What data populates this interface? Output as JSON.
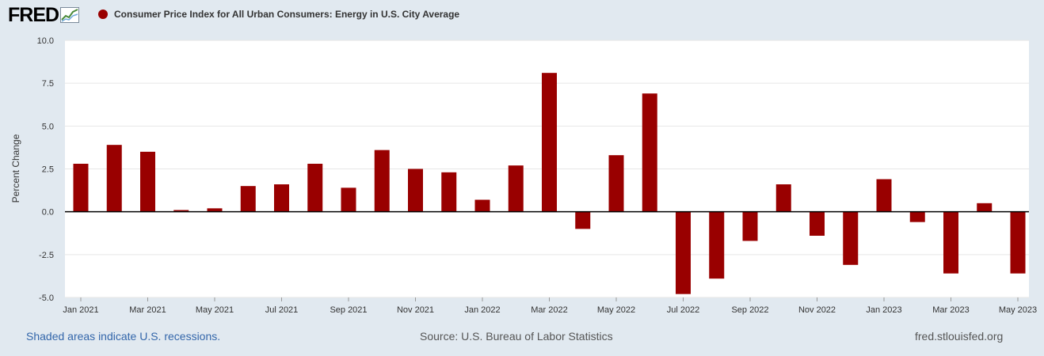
{
  "header": {
    "logo_text": "FRED",
    "series_title": "Consumer Price Index for All Urban Consumers: Energy in U.S. City Average",
    "series_color": "#990000"
  },
  "footer": {
    "recession_note": "Shaded areas indicate U.S. recessions.",
    "source": "Source: U.S. Bureau of Labor Statistics",
    "site": "fred.stlouisfed.org"
  },
  "chart_data": {
    "type": "bar",
    "title": "Consumer Price Index for All Urban Consumers: Energy in U.S. City Average",
    "xlabel": "",
    "ylabel": "Percent Change",
    "ylim": [
      -5.0,
      10.0
    ],
    "yticks": [
      "-5.0",
      "-2.5",
      "0.0",
      "2.5",
      "5.0",
      "7.5",
      "10.0"
    ],
    "xtick_labels": [
      "Jan 2021",
      "Mar 2021",
      "May 2021",
      "Jul 2021",
      "Sep 2021",
      "Nov 2021",
      "Jan 2022",
      "Mar 2022",
      "May 2022",
      "Jul 2022",
      "Sep 2022",
      "Nov 2022",
      "Jan 2023",
      "Mar 2023",
      "May 2023"
    ],
    "categories": [
      "Jan 2021",
      "Feb 2021",
      "Mar 2021",
      "Apr 2021",
      "May 2021",
      "Jun 2021",
      "Jul 2021",
      "Aug 2021",
      "Sep 2021",
      "Oct 2021",
      "Nov 2021",
      "Dec 2021",
      "Jan 2022",
      "Feb 2022",
      "Mar 2022",
      "Apr 2022",
      "May 2022",
      "Jun 2022",
      "Jul 2022",
      "Aug 2022",
      "Sep 2022",
      "Oct 2022",
      "Nov 2022",
      "Dec 2022",
      "Jan 2023",
      "Feb 2023",
      "Mar 2023",
      "Apr 2023",
      "May 2023"
    ],
    "values": [
      2.8,
      3.9,
      3.5,
      0.1,
      0.2,
      1.5,
      1.6,
      2.8,
      1.4,
      3.6,
      2.5,
      2.3,
      0.7,
      2.7,
      8.1,
      -1.0,
      3.3,
      6.9,
      -4.8,
      -3.9,
      -1.7,
      1.6,
      -1.4,
      -3.1,
      1.9,
      -0.6,
      -3.6,
      0.5,
      -3.6
    ],
    "grid": true,
    "color": "#990000"
  }
}
